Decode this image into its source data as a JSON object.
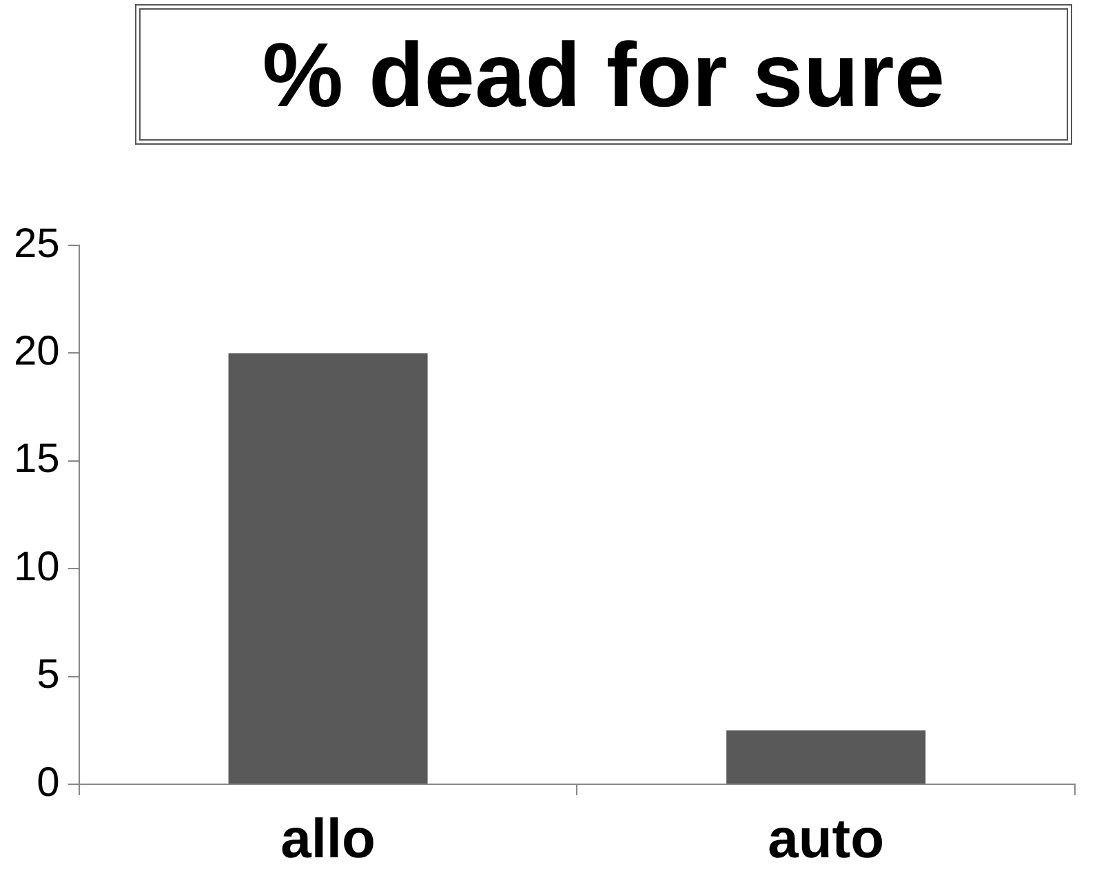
{
  "chart_data": {
    "type": "bar",
    "title": "% dead for sure",
    "categories": [
      "allo",
      "auto"
    ],
    "values": [
      20,
      2.5
    ],
    "color": "#595959",
    "ylim": [
      0,
      25
    ],
    "yticks": [
      0,
      5,
      10,
      15,
      20,
      25
    ]
  }
}
